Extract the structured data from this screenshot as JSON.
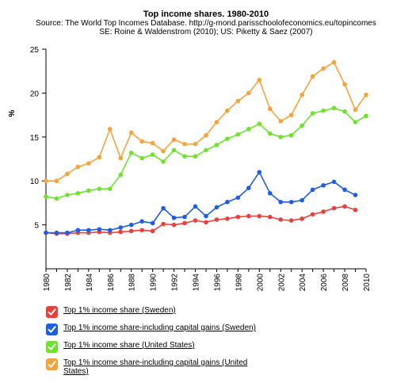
{
  "chart_data": {
    "type": "line",
    "title": "Top income shares. 1980-2010",
    "subtitle": [
      "Source: The World Top Incomes Database. http://g-mond.parisschoolofeconomics.eu/topincomes",
      "SE: Roine & Waldenstrom (2010); US: Piketty & Saez (2007)"
    ],
    "ylabel": "%",
    "xlabel": "",
    "xlim": [
      1980,
      2010
    ],
    "ylim": [
      0,
      25
    ],
    "x_ticks": [
      "1980",
      "1982",
      "1984",
      "1986",
      "1988",
      "1990",
      "1992",
      "1994",
      "1996",
      "1998",
      "2000",
      "2002",
      "2004",
      "2006",
      "2008",
      "2010"
    ],
    "y_ticks": [
      "5",
      "10",
      "15",
      "20",
      "25"
    ],
    "grid": false,
    "legend_position": "bottom-left",
    "series": [
      {
        "name": "Top 1% income share (Sweden)",
        "color": "#e8413b",
        "x": [
          1980,
          1981,
          1982,
          1983,
          1984,
          1985,
          1986,
          1987,
          1988,
          1989,
          1990,
          1991,
          1992,
          1993,
          1994,
          1995,
          1996,
          1997,
          1998,
          1999,
          2000,
          2001,
          2002,
          2003,
          2004,
          2005,
          2006,
          2007,
          2008,
          2009
        ],
        "values": [
          4.1,
          4.0,
          4.0,
          4.1,
          4.1,
          4.2,
          4.1,
          4.2,
          4.3,
          4.4,
          4.3,
          5.1,
          5.0,
          5.2,
          5.5,
          5.3,
          5.6,
          5.7,
          5.9,
          6.0,
          6.0,
          5.9,
          5.6,
          5.5,
          5.7,
          6.2,
          6.5,
          6.9,
          7.1,
          6.7
        ]
      },
      {
        "name": "Top 1% income share-including capital gains (Sweden)",
        "color": "#1f5ee0",
        "x": [
          1980,
          1981,
          1982,
          1983,
          1984,
          1985,
          1986,
          1987,
          1988,
          1989,
          1990,
          1991,
          1992,
          1993,
          1994,
          1995,
          1996,
          1997,
          1998,
          1999,
          2000,
          2001,
          2002,
          2003,
          2004,
          2005,
          2006,
          2007,
          2008,
          2009
        ],
        "values": [
          4.1,
          4.1,
          4.1,
          4.4,
          4.4,
          4.5,
          4.4,
          4.7,
          5.0,
          5.4,
          5.2,
          6.9,
          5.8,
          5.9,
          7.1,
          6.0,
          7.0,
          7.6,
          8.1,
          9.2,
          11.0,
          8.6,
          7.6,
          7.6,
          7.8,
          9.0,
          9.5,
          9.9,
          9.0,
          8.4
        ]
      },
      {
        "name": "Top 1% income share (United States)",
        "color": "#6fe32b",
        "x": [
          1980,
          1981,
          1982,
          1983,
          1984,
          1985,
          1986,
          1987,
          1988,
          1989,
          1990,
          1991,
          1992,
          1993,
          1994,
          1995,
          1996,
          1997,
          1998,
          1999,
          2000,
          2001,
          2002,
          2003,
          2004,
          2005,
          2006,
          2007,
          2008,
          2009,
          2010
        ],
        "values": [
          8.2,
          8.0,
          8.4,
          8.6,
          8.9,
          9.1,
          9.1,
          10.7,
          13.2,
          12.6,
          13.0,
          12.2,
          13.5,
          12.8,
          12.8,
          13.5,
          14.1,
          14.8,
          15.3,
          15.9,
          16.5,
          15.4,
          15.0,
          15.2,
          16.3,
          17.7,
          18.0,
          18.3,
          17.9,
          16.7,
          17.4
        ]
      },
      {
        "name": "Top 1% income share-including capital gains (United States)",
        "color": "#f5a43b",
        "x": [
          1980,
          1981,
          1982,
          1983,
          1984,
          1985,
          1986,
          1987,
          1988,
          1989,
          1990,
          1991,
          1992,
          1993,
          1994,
          1995,
          1996,
          1997,
          1998,
          1999,
          2000,
          2001,
          2002,
          2003,
          2004,
          2005,
          2006,
          2007,
          2008,
          2009,
          2010
        ],
        "values": [
          10.0,
          10.0,
          10.8,
          11.6,
          12.0,
          12.7,
          15.9,
          12.6,
          15.5,
          14.5,
          14.3,
          13.4,
          14.7,
          14.2,
          14.2,
          15.2,
          16.7,
          18.0,
          19.1,
          20.0,
          21.5,
          18.2,
          16.8,
          17.5,
          19.8,
          21.9,
          22.8,
          23.5,
          21.0,
          18.1,
          19.8
        ]
      }
    ]
  },
  "legend": {
    "items": [
      {
        "label": "Top 1% income share (Sweden)",
        "color": "#e8413b",
        "checked": true
      },
      {
        "label": "Top 1% income share-including capital gains (Sweden)",
        "color": "#1f5ee0",
        "checked": true
      },
      {
        "label": "Top 1% income share (United States)",
        "color": "#6fe32b",
        "checked": true
      },
      {
        "label": "Top 1% income share-including capital gains (United States)",
        "color": "#f5a43b",
        "checked": true
      }
    ]
  }
}
